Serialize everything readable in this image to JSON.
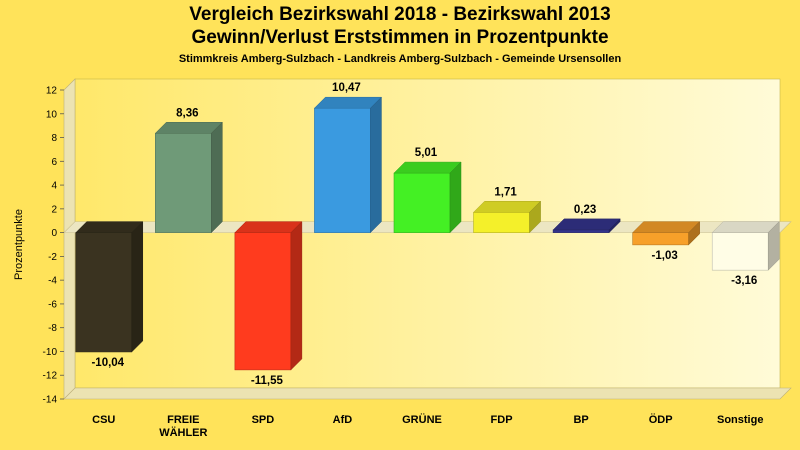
{
  "chart_data": {
    "type": "bar",
    "title": "Vergleich Bezirkswahl 2018 - Bezirkswahl 2013",
    "subtitle": "Gewinn/Verlust Erststimmen in Prozentpunkte",
    "subtitle2": "Stimmkreis Amberg-Sulzbach - Landkreis Amberg-Sulzbach - Gemeinde Ursensollen",
    "ylabel": "Prozentpunkte",
    "xlabel": "",
    "ylim": [
      -14,
      12
    ],
    "yticks": [
      12,
      10,
      8,
      6,
      4,
      2,
      0,
      -2,
      -4,
      -6,
      -8,
      -10,
      -12,
      -14
    ],
    "categories": [
      "CSU",
      "FREIE WÄHLER",
      "SPD",
      "AfD",
      "GRÜNE",
      "FDP",
      "BP",
      "ÖDP",
      "Sonstige"
    ],
    "category_lines": [
      [
        "CSU"
      ],
      [
        "FREIE",
        "WÄHLER"
      ],
      [
        "SPD"
      ],
      [
        "AfD"
      ],
      [
        "GRÜNE"
      ],
      [
        "FDP"
      ],
      [
        "BP"
      ],
      [
        "ÖDP"
      ],
      [
        "Sonstige"
      ]
    ],
    "values": [
      -10.04,
      8.36,
      -11.55,
      10.47,
      5.01,
      1.71,
      0.23,
      -1.03,
      -3.16
    ],
    "value_labels": [
      "-10,04",
      "8,36",
      "-11,55",
      "10,47",
      "5,01",
      "1,71",
      "0,23",
      "-1,03",
      "-3,16"
    ],
    "colors": [
      "#3a3320",
      "#6f9a78",
      "#ff3b1e",
      "#3a9ae0",
      "#44f024",
      "#f4f02a",
      "#34348c",
      "#f7a02a",
      "#fffde6"
    ],
    "grid": false,
    "legend": "none"
  }
}
